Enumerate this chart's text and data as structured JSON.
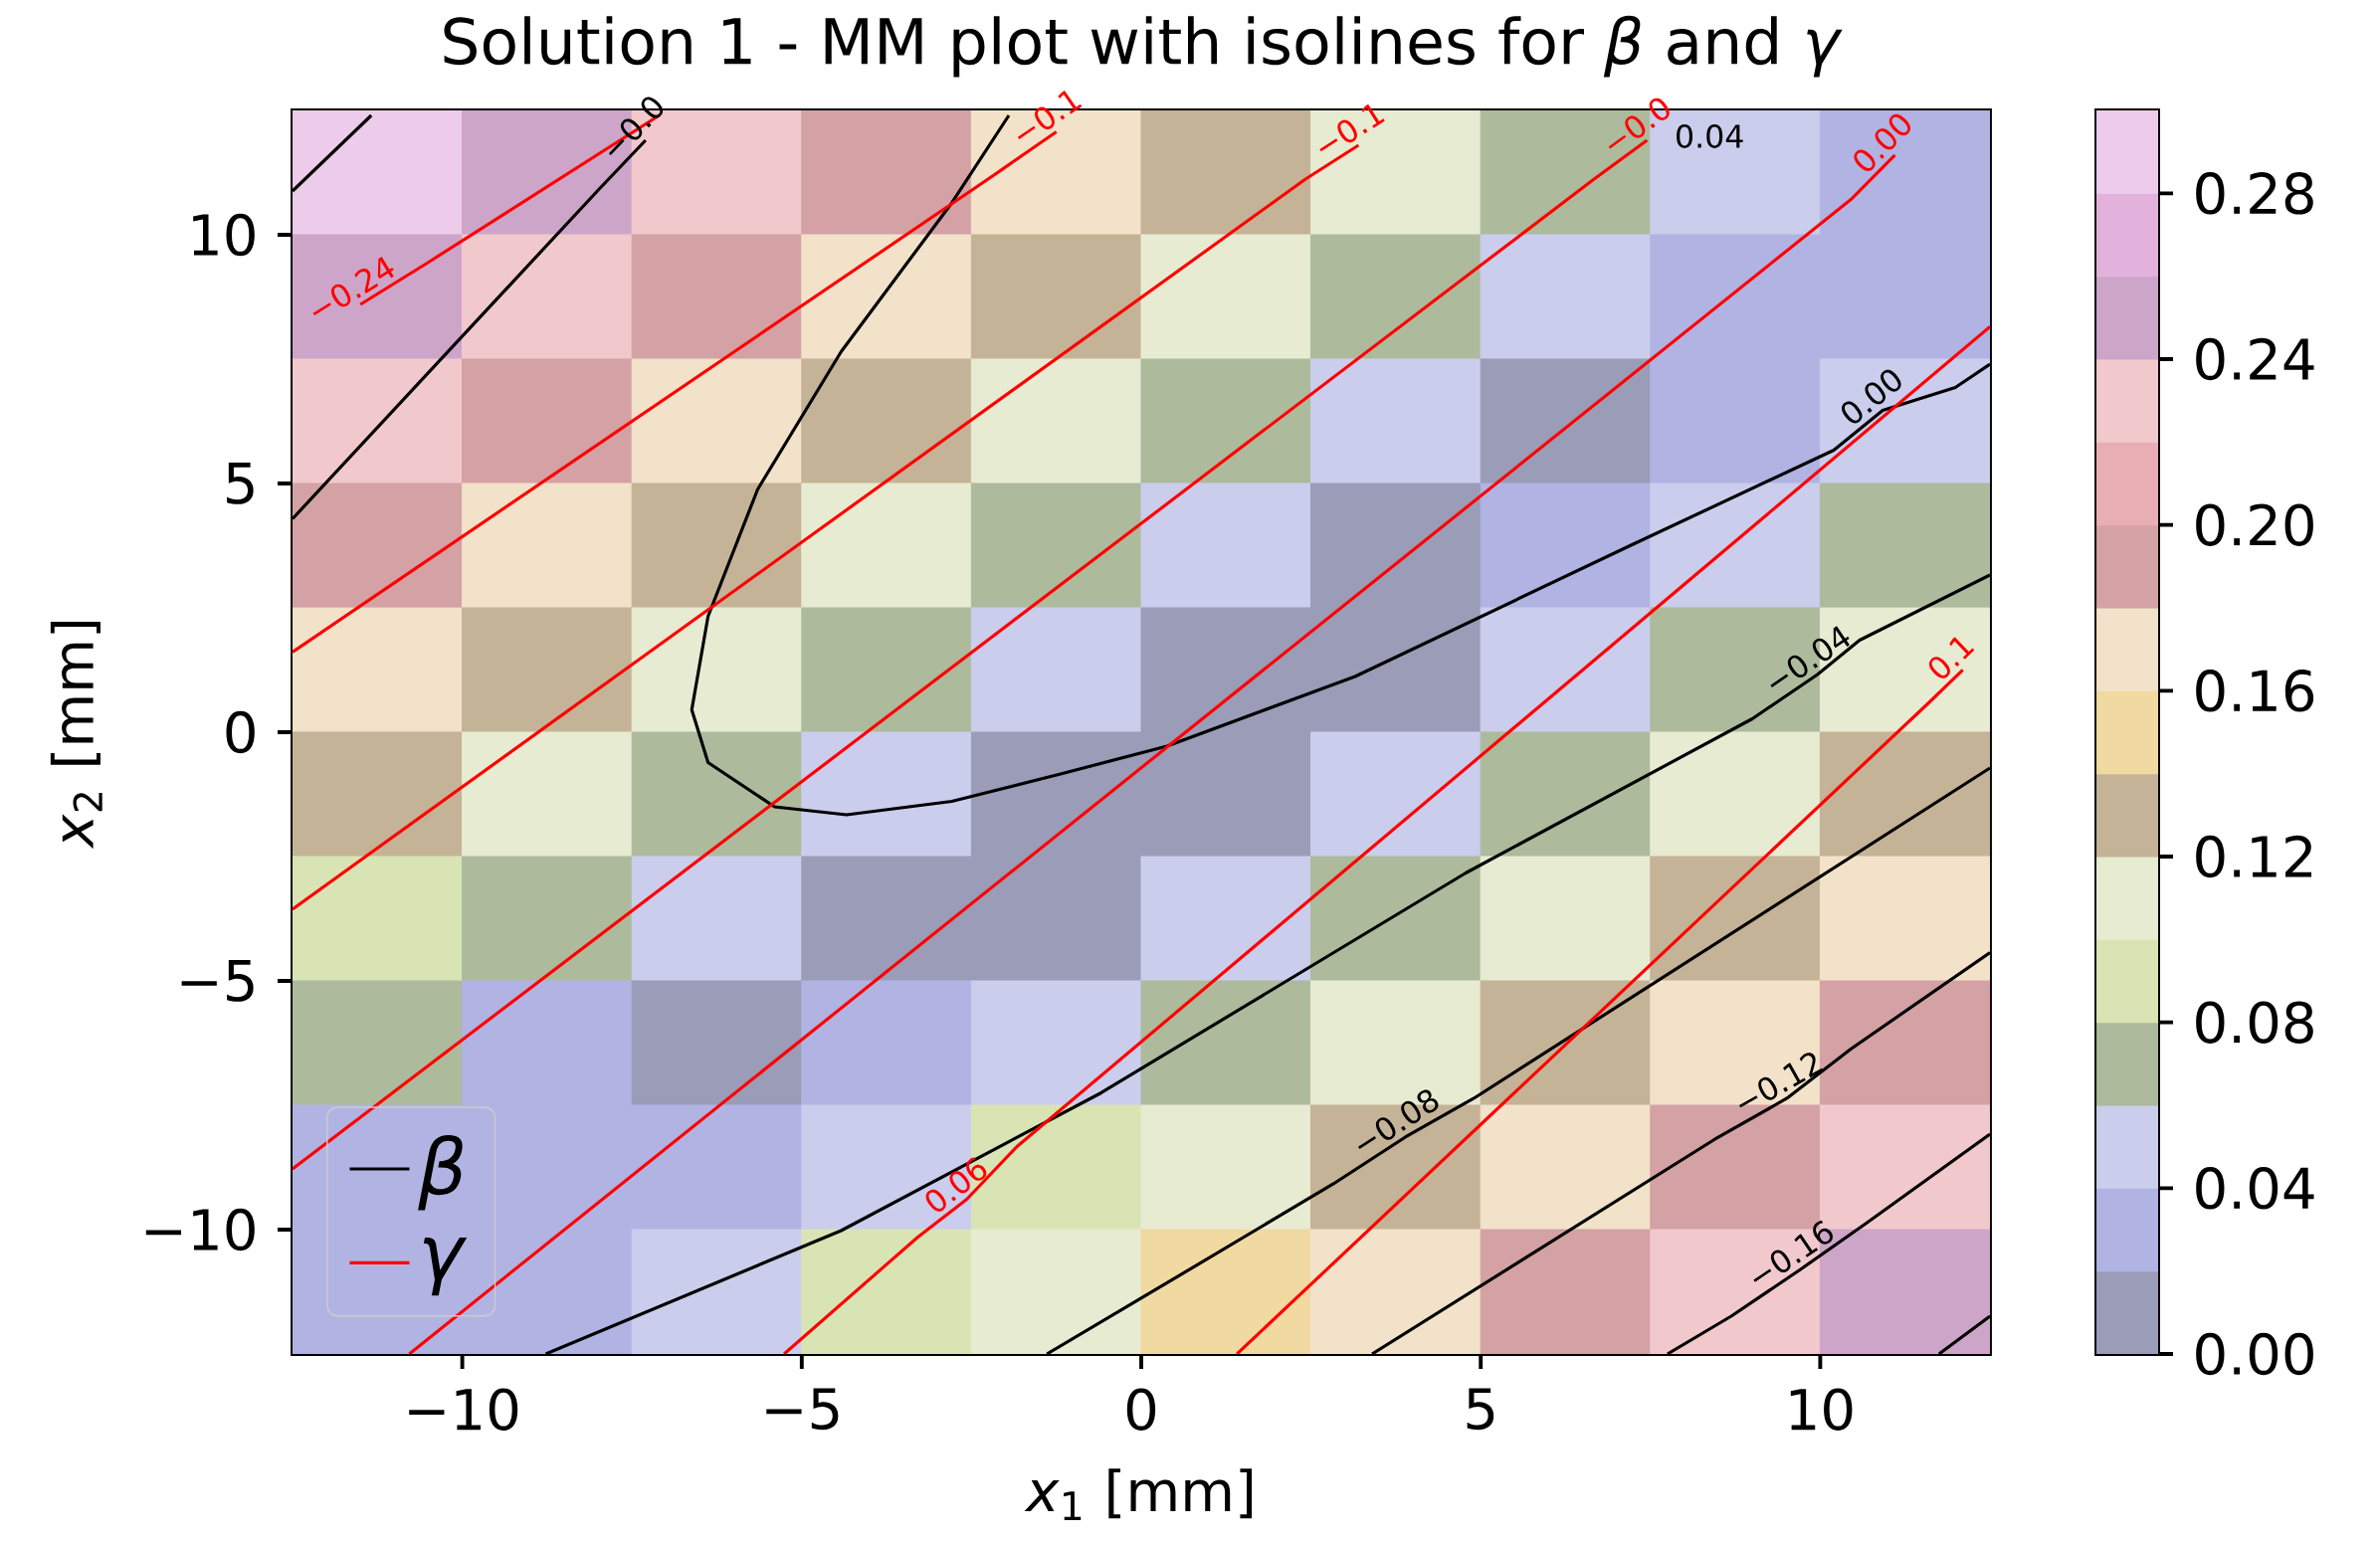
{
  "chart_data": {
    "type": "heatmap",
    "title": "Solution 1 - MM plot with isolines for *β* and *γ*",
    "xlabel": "*x*$_{1}$ [mm]",
    "ylabel": "*x*$_{2}$ [mm]",
    "xlim": [
      -12.5,
      12.5
    ],
    "ylim": [
      -12.5,
      12.5
    ],
    "xticks": [
      {
        "value": -10,
        "label": "−10"
      },
      {
        "value": -5,
        "label": "−5"
      },
      0,
      5,
      10
    ],
    "yticks": [
      {
        "value": -10,
        "label": "−10"
      },
      {
        "value": -5,
        "label": "−5"
      },
      0,
      5,
      10
    ],
    "x": [
      -11.25,
      -8.75,
      -6.25,
      -3.75,
      -1.25,
      1.25,
      3.75,
      6.25,
      8.75,
      11.25
    ],
    "y": [
      11.25,
      8.75,
      6.25,
      3.75,
      1.25,
      -1.25,
      -3.75,
      -6.25,
      -8.75,
      -11.25
    ],
    "cells": [
      [
        0.29,
        0.25,
        0.23,
        0.19,
        0.17,
        0.13,
        0.11,
        0.07,
        0.05,
        0.03
      ],
      [
        0.25,
        0.23,
        0.19,
        0.17,
        0.13,
        0.11,
        0.07,
        0.05,
        0.03,
        0.03
      ],
      [
        0.23,
        0.19,
        0.17,
        0.13,
        0.11,
        0.07,
        0.05,
        0.01,
        0.03,
        0.05
      ],
      [
        0.19,
        0.17,
        0.13,
        0.11,
        0.07,
        0.05,
        0.01,
        0.03,
        0.05,
        0.07
      ],
      [
        0.17,
        0.13,
        0.11,
        0.07,
        0.05,
        0.01,
        0.01,
        0.05,
        0.07,
        0.11
      ],
      [
        0.13,
        0.11,
        0.07,
        0.05,
        0.01,
        0.01,
        0.05,
        0.07,
        0.11,
        0.13
      ],
      [
        0.09,
        0.07,
        0.05,
        0.01,
        0.01,
        0.05,
        0.07,
        0.11,
        0.13,
        0.17
      ],
      [
        0.07,
        0.03,
        0.01,
        0.03,
        0.05,
        0.07,
        0.11,
        0.13,
        0.17,
        0.19
      ],
      [
        0.03,
        0.03,
        0.03,
        0.05,
        0.09,
        0.11,
        0.13,
        0.17,
        0.19,
        0.23
      ],
      [
        0.03,
        0.03,
        0.05,
        0.09,
        0.11,
        0.15,
        0.17,
        0.19,
        0.23,
        0.25
      ]
    ],
    "colors": [
      "#9a9cb8",
      "#b1b3e3",
      "#cbcdec",
      "#adba9c",
      "#d8e4b4",
      "#e7ebd2",
      "#c4b396",
      "#f1d9a2",
      "#f1e2c9",
      "#d4a1a4",
      "#e8aeb4",
      "#f1c9cd",
      "#cda5c9",
      "#e2b2dc",
      "#ecccea"
    ],
    "clim": [
      0,
      0.3
    ],
    "cticks": [
      {
        "value": 0,
        "label": "0.00"
      },
      {
        "value": 0.04,
        "label": "0.04"
      },
      {
        "value": 0.08,
        "label": "0.08"
      },
      {
        "value": 0.12,
        "label": "0.12"
      },
      {
        "value": 0.16,
        "label": "0.16"
      },
      {
        "value": 0.2,
        "label": "0.20"
      },
      {
        "value": 0.24,
        "label": "0.24"
      },
      {
        "value": 0.28,
        "label": "0.28"
      }
    ],
    "legend": "bottom left",
    "annotations": [
      {
        "text": "0.00",
        "x": 10.92,
        "y": 6.47
      },
      {
        "text": "−0.0",
        "x": -7.3,
        "y": 11.9
      },
      {
        "text": "−0.04",
        "x": 9.96,
        "y": 1.16
      },
      {
        "text": "−0.08",
        "x": 3.89,
        "y": -8.14
      },
      {
        "text": "−0.12",
        "x": 9.51,
        "y": -7.36
      },
      {
        "text": "−0.16",
        "x": 9.71,
        "y": -10.8
      },
      "0.04",
      {
        "text": "−0.24",
        "x": -11.5,
        "y": 8.6
      },
      {
        "text": "−0.1",
        "x": -1.25,
        "y": 12.07
      },
      {
        "text": "−0.1",
        "x": 3.2,
        "y": 11.8
      },
      {
        "text": "−0.0",
        "x": 7.45,
        "y": 11.9
      },
      {
        "text": "0.00",
        "x": 11.1,
        "y": 11.6
      },
      {
        "text": "0.06",
        "x": -2.57,
        "y": -9.39
      },
      {
        "text": "0.1",
        "x": 12.1,
        "y": 1.25
      }
    ],
    "series": [
      {
        "type": "line",
        "name": "β",
        "color": "#000000",
        "x": [
          -1.95,
          -2.79,
          -4.42,
          -5.65,
          -6.38,
          -6.62,
          -6.38,
          -5.4,
          -4.34,
          -2.79,
          -1.16,
          0.38,
          3.15,
          7.23,
          10.2,
          10.92,
          11.99,
          12.5
        ],
        "values": [
          12.4,
          10.64,
          7.65,
          4.88,
          2.33,
          0.45,
          -0.61,
          -1.5,
          -1.66,
          -1.39,
          -0.83,
          -0.28,
          1.12,
          3.77,
          5.67,
          6.47,
          6.93,
          7.4
        ]
      },
      {
        "type": "line",
        "color": "#000000",
        "x": [
          -12.5,
          -11.34
        ],
        "values": [
          10.88,
          12.4
        ]
      },
      {
        "type": "line",
        "color": "#000000",
        "x": [
          -12.5,
          -7.99,
          -7.3
        ],
        "values": [
          4.29,
          10.91,
          11.9
        ]
      },
      {
        "type": "line",
        "color": "#000000",
        "x": [
          -8.77,
          -4.42,
          -0.59,
          4.78,
          9.0,
          9.96,
          10.58,
          12.5
        ],
        "values": [
          -12.5,
          -10.02,
          -7.25,
          -2.83,
          0.27,
          1.16,
          1.85,
          3.16
        ]
      },
      {
        "type": "line",
        "color": "#000000",
        "x": [
          -1.39,
          -0.1,
          2.83,
          3.89,
          4.9,
          12.5
        ],
        "values": [
          -12.5,
          -11.46,
          -9.08,
          -8.14,
          -7.36,
          -0.72
        ]
      },
      {
        "type": "line",
        "color": "#000000",
        "x": [
          3.4,
          8.44,
          9.51,
          10.45,
          12.5
        ],
        "values": [
          -12.5,
          -8.19,
          -7.36,
          -6.37,
          -4.43
        ]
      },
      {
        "type": "line",
        "color": "#000000",
        "x": [
          7.75,
          8.69,
          9.71,
          10.69,
          12.5
        ],
        "values": [
          -12.5,
          -11.74,
          -10.8,
          -9.86,
          -8.08
        ]
      },
      {
        "type": "line",
        "color": "#000000",
        "x": [
          11.75,
          12.5
        ],
        "values": [
          -12.5,
          -11.74
        ]
      },
      {
        "type": "line",
        "name": "γ",
        "color": "#ff0000",
        "x": [
          -11.5,
          -10.53,
          -7.1
        ],
        "values": [
          8.6,
          9.42,
          12.4
        ]
      },
      {
        "type": "line",
        "color": "#ff0000",
        "x": [
          -12.5,
          -2.18,
          -1.25
        ],
        "values": [
          1.61,
          11.19,
          12.07
        ]
      },
      {
        "type": "line",
        "color": "#ff0000",
        "x": [
          -12.5,
          2.42,
          3.2
        ],
        "values": [
          -3.56,
          11.12,
          11.8
        ]
      },
      {
        "type": "line",
        "color": "#ff0000",
        "x": [
          -12.5,
          6.67,
          7.45
        ],
        "values": [
          -8.78,
          11.12,
          11.9
        ]
      },
      {
        "type": "line",
        "color": "#ff0000",
        "x": [
          -10.78,
          10.47,
          11.1
        ],
        "values": [
          -12.5,
          10.73,
          11.6
        ]
      },
      {
        "type": "line",
        "color": "#ff0000",
        "x": [
          -5.26,
          -3.29,
          -2.57,
          -1.83,
          12.5
        ],
        "values": [
          -12.5,
          -10.15,
          -9.39,
          -8.33,
          8.15
        ]
      },
      {
        "type": "line",
        "color": "#ff0000",
        "x": [
          1.41,
          11.59,
          12.1
        ],
        "values": [
          -12.5,
          0.58,
          1.25
        ]
      }
    ]
  }
}
